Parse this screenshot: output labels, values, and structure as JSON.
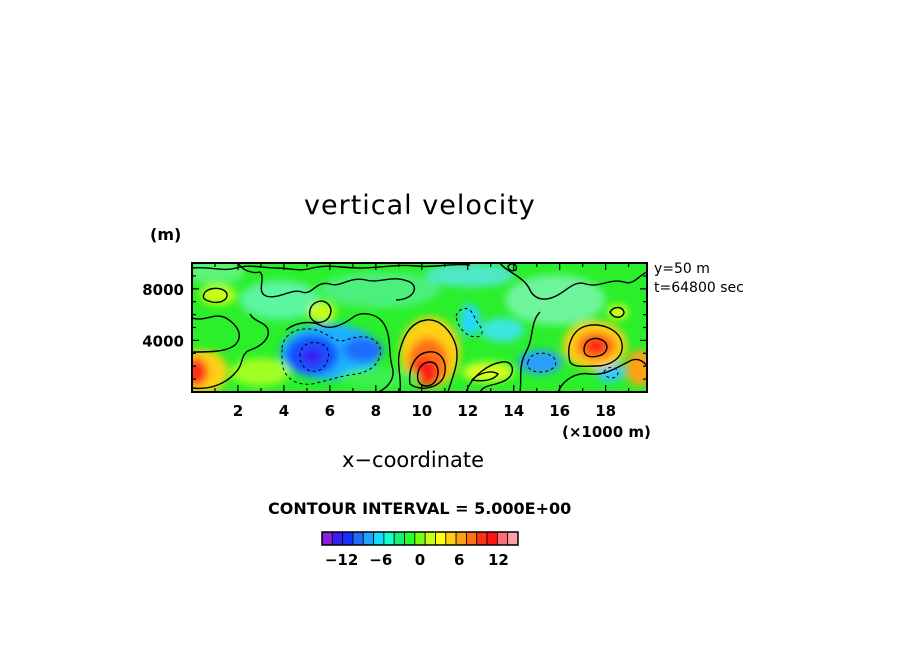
{
  "chart_data": {
    "type": "heatmap",
    "title": "vertical velocity",
    "xlabel": "x−coordinate",
    "x_unit": "(×1000 m)",
    "y_unit": "(m)",
    "annotations": [
      "y=50 m",
      "t=64800 sec"
    ],
    "contour_interval_label": "CONTOUR INTERVAL = 5.000E+00",
    "xlim": [
      0,
      19.8
    ],
    "ylim": [
      0,
      10000
    ],
    "x_ticks": [
      2,
      4,
      6,
      8,
      10,
      12,
      14,
      16,
      18
    ],
    "x_tick_labels": [
      "2",
      "4",
      "6",
      "8",
      "10",
      "12",
      "14",
      "16",
      "18"
    ],
    "y_ticks": [
      4000,
      8000
    ],
    "y_tick_labels": [
      "4000",
      "8000"
    ],
    "colorbar": {
      "min": -15,
      "max": 15,
      "ticks": [
        -12,
        -6,
        0,
        6,
        12
      ],
      "tick_labels": [
        "−12",
        "−6",
        "0",
        "6",
        "12"
      ],
      "colors": [
        "#8a1ee0",
        "#3a1ef0",
        "#1430ff",
        "#1e6cff",
        "#1ea6ff",
        "#14dcff",
        "#14ffd0",
        "#14f078",
        "#2aff2a",
        "#78ff14",
        "#c8ff14",
        "#ffff14",
        "#ffd014",
        "#ffa014",
        "#ff7014",
        "#ff3014",
        "#ff1414",
        "#ff6e78",
        "#ff9ea6"
      ]
    },
    "features": [
      {
        "kind": "updraft",
        "x": 10.6,
        "y": 1300,
        "peak": 15
      },
      {
        "kind": "updraft",
        "x": 17.6,
        "y": 3600,
        "peak": 14
      },
      {
        "kind": "updraft",
        "x": 0.2,
        "y": 2000,
        "peak": 11
      },
      {
        "kind": "updraft",
        "x": 19.7,
        "y": 2000,
        "peak": 10
      },
      {
        "kind": "downdraft",
        "x": 5.5,
        "y": 3000,
        "peak": -11
      },
      {
        "kind": "downdraft",
        "x": 7.5,
        "y": 3500,
        "peak": -8
      },
      {
        "kind": "downdraft",
        "x": 15.4,
        "y": 2800,
        "peak": -6
      },
      {
        "kind": "downdraft",
        "x": 11.8,
        "y": 6000,
        "peak": -5
      }
    ]
  }
}
